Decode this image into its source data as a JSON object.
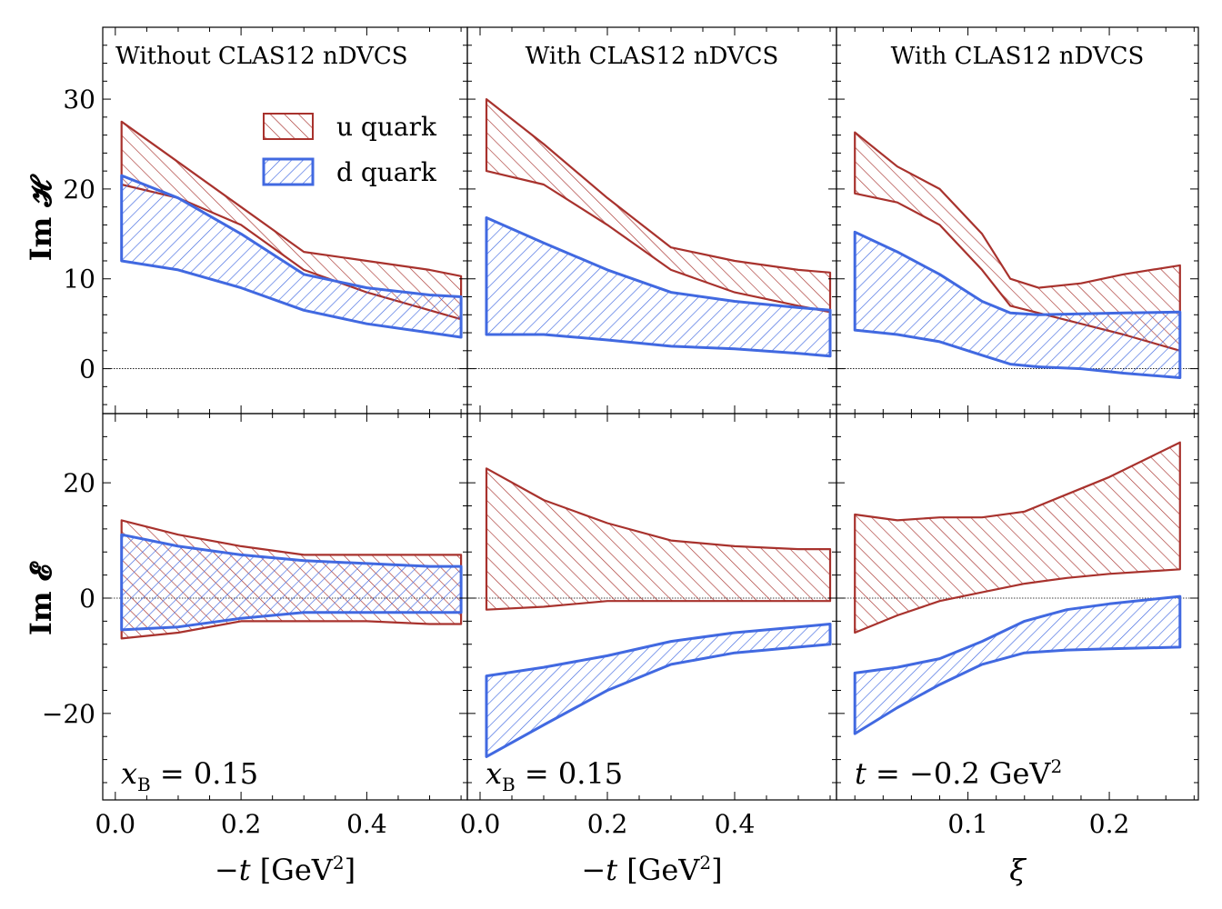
{
  "colors": {
    "u": "#a8322d",
    "d": "#4169e1",
    "zero_line": "#000000"
  },
  "legend": {
    "placement": "upper-right of first panel",
    "entries": [
      {
        "key": "u",
        "label": "u quark"
      },
      {
        "key": "d",
        "label": "d quark"
      }
    ]
  },
  "chart_data": [
    {
      "type": "area",
      "row": 0,
      "col": 0,
      "title": "Without CLAS12 nDVCS",
      "ylabel": "Im H",
      "xlim": [
        -0.02,
        0.56
      ],
      "ylim": [
        -5,
        38
      ],
      "yticks": [
        0,
        10,
        20,
        30
      ],
      "bands": [
        {
          "key": "u",
          "x": [
            0.01,
            0.1,
            0.2,
            0.3,
            0.4,
            0.5,
            0.55
          ],
          "lower": [
            20.5,
            19,
            16,
            11,
            8.5,
            6.5,
            5.5
          ],
          "upper": [
            27.5,
            23,
            18,
            13,
            12,
            11,
            10.3
          ]
        },
        {
          "key": "d",
          "x": [
            0.01,
            0.1,
            0.2,
            0.3,
            0.4,
            0.5,
            0.55
          ],
          "lower": [
            12,
            11,
            9,
            6.5,
            5,
            4,
            3.5
          ],
          "upper": [
            21.5,
            19,
            15,
            10.5,
            9,
            8.2,
            8
          ]
        }
      ]
    },
    {
      "type": "area",
      "row": 0,
      "col": 1,
      "title": "With CLAS12 nDVCS",
      "xlim": [
        -0.02,
        0.56
      ],
      "ylim": [
        -5,
        38
      ],
      "bands": [
        {
          "key": "u",
          "x": [
            0.01,
            0.1,
            0.2,
            0.3,
            0.4,
            0.5,
            0.55
          ],
          "lower": [
            22,
            20.5,
            16,
            11,
            8.5,
            7,
            6.3
          ],
          "upper": [
            30,
            25,
            19,
            13.5,
            12,
            11,
            10.7
          ]
        },
        {
          "key": "d",
          "x": [
            0.01,
            0.1,
            0.2,
            0.3,
            0.4,
            0.5,
            0.55
          ],
          "lower": [
            3.8,
            3.8,
            3.2,
            2.5,
            2.2,
            1.7,
            1.4
          ],
          "upper": [
            16.8,
            14,
            11,
            8.5,
            7.5,
            6.8,
            6.5
          ]
        }
      ]
    },
    {
      "type": "area",
      "row": 0,
      "col": 2,
      "title": "With CLAS12 nDVCS",
      "xlim": [
        0.007,
        0.263
      ],
      "ylim": [
        -5,
        38
      ],
      "bands": [
        {
          "key": "u",
          "x": [
            0.02,
            0.05,
            0.08,
            0.11,
            0.13,
            0.15,
            0.18,
            0.21,
            0.25
          ],
          "lower": [
            19.5,
            18.5,
            16,
            11,
            7,
            6.2,
            5,
            3.8,
            2
          ],
          "upper": [
            26.3,
            22.5,
            20,
            15,
            10,
            9,
            9.5,
            10.5,
            11.5
          ]
        },
        {
          "key": "d",
          "x": [
            0.02,
            0.05,
            0.08,
            0.11,
            0.13,
            0.15,
            0.18,
            0.21,
            0.25
          ],
          "lower": [
            4.3,
            3.8,
            3,
            1.5,
            0.5,
            0.2,
            0,
            -0.5,
            -1
          ]
        },
        {
          "key": "d_upper_only",
          "x": [],
          "lower": [],
          "upper": []
        }
      ],
      "d_upper": [
        15.2,
        13,
        10.5,
        7.5,
        6.2,
        6,
        6.1,
        6.2,
        6.3
      ]
    },
    {
      "type": "area",
      "row": 1,
      "col": 0,
      "ylabel": "Im E",
      "xlabel": "-t [GeV²]",
      "xlim": [
        -0.02,
        0.56
      ],
      "ylim": [
        -35,
        32
      ],
      "xticks": [
        0.0,
        0.2,
        0.4
      ],
      "yticks": [
        -20,
        0,
        20
      ],
      "annotation": "x_B = 0.15",
      "bands": [
        {
          "key": "u",
          "x": [
            0.01,
            0.1,
            0.2,
            0.3,
            0.4,
            0.5,
            0.55
          ],
          "lower": [
            -7,
            -6,
            -4,
            -4,
            -4,
            -4.5,
            -4.5
          ],
          "upper": [
            13.5,
            11,
            9,
            7.5,
            7.5,
            7.5,
            7.5
          ]
        },
        {
          "key": "d",
          "x": [
            0.01,
            0.1,
            0.2,
            0.3,
            0.4,
            0.5,
            0.55
          ],
          "lower": [
            -5.5,
            -5,
            -3.5,
            -2.5,
            -2.5,
            -2.5,
            -2.5
          ],
          "upper": [
            11,
            9,
            7.5,
            6.5,
            6,
            5.5,
            5.5
          ]
        }
      ]
    },
    {
      "type": "area",
      "row": 1,
      "col": 1,
      "xlabel": "-t [GeV²]",
      "xlim": [
        -0.02,
        0.56
      ],
      "ylim": [
        -35,
        32
      ],
      "xticks": [
        0.0,
        0.2,
        0.4
      ],
      "annotation": "x_B = 0.15",
      "bands": [
        {
          "key": "u",
          "x": [
            0.01,
            0.1,
            0.2,
            0.3,
            0.4,
            0.5,
            0.55
          ],
          "lower": [
            -2,
            -1.5,
            -0.5,
            -0.5,
            -0.5,
            -0.5,
            -0.5
          ],
          "upper": [
            22.5,
            17,
            13,
            10,
            9,
            8.5,
            8.5
          ]
        },
        {
          "key": "d",
          "x": [
            0.01,
            0.1,
            0.2,
            0.3,
            0.4,
            0.5,
            0.55
          ],
          "lower": [
            -27.5,
            -22,
            -16,
            -11.5,
            -9.5,
            -8.5,
            -8
          ],
          "upper": [
            -13.5,
            -12,
            -10,
            -7.5,
            -6,
            -5,
            -4.5
          ]
        }
      ]
    },
    {
      "type": "area",
      "row": 1,
      "col": 2,
      "xlabel": "ξ",
      "xlim": [
        0.007,
        0.263
      ],
      "ylim": [
        -35,
        32
      ],
      "xticks": [
        0.1,
        0.2
      ],
      "annotation": "t = −0.2 GeV²",
      "bands": [
        {
          "key": "u",
          "x": [
            0.02,
            0.05,
            0.08,
            0.11,
            0.14,
            0.17,
            0.2,
            0.25
          ],
          "lower": [
            -6,
            -3,
            -0.5,
            1,
            2.5,
            3.5,
            4.2,
            5
          ],
          "upper": [
            14.5,
            13.5,
            14,
            14,
            15,
            18,
            21,
            27
          ]
        },
        {
          "key": "d",
          "x": [
            0.02,
            0.05,
            0.08,
            0.11,
            0.14,
            0.17,
            0.2,
            0.25
          ],
          "lower": [
            -23.5,
            -19,
            -15,
            -11.5,
            -9.5,
            -9,
            -8.8,
            -8.5
          ],
          "upper": [
            -13,
            -12,
            -10.5,
            -7.5,
            -4,
            -2,
            -1,
            0.3
          ]
        }
      ]
    }
  ],
  "text": {
    "yl_top": "Im 𝓗",
    "yl_bot": "Im 𝓔"
  }
}
